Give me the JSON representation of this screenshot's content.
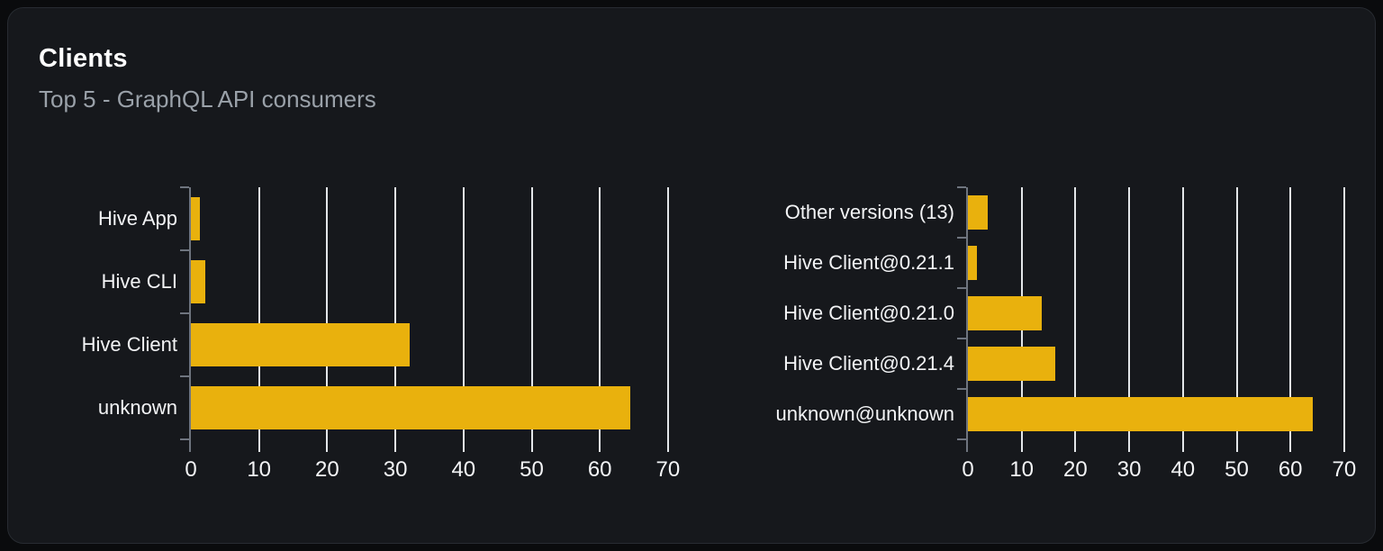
{
  "card": {
    "title": "Clients",
    "subtitle": "Top 5 - GraphQL API consumers"
  },
  "colors": {
    "page_background": "#0a0b0d",
    "card_background": "#16181c",
    "card_border": "#272b31",
    "bar": "#e9b10d",
    "gridline": "#e3e6e9",
    "axis": "#6e747e",
    "title_text": "#ffffff",
    "subtitle_text": "#9aa1a9",
    "label_text": "#f3f4f6"
  },
  "chart_data": [
    {
      "type": "bar",
      "orientation": "horizontal",
      "title": "",
      "xlabel": "",
      "ylabel": "",
      "categories": [
        "Hive App",
        "Hive CLI",
        "Hive Client",
        "unknown"
      ],
      "values": [
        1.3,
        2.1,
        32.1,
        64.5
      ],
      "xticks": [
        0,
        10,
        20,
        30,
        40,
        50,
        60,
        70
      ],
      "xlim": [
        0,
        70.8
      ],
      "grid": true,
      "legend": false,
      "bar_color": "#e9b10d"
    },
    {
      "type": "bar",
      "orientation": "horizontal",
      "title": "",
      "xlabel": "",
      "ylabel": "",
      "categories": [
        "Other versions (13)",
        "Hive Client@0.21.1",
        "Hive Client@0.21.0",
        "Hive Client@0.21.4",
        "unknown@unknown"
      ],
      "values": [
        3.7,
        1.7,
        13.7,
        16.3,
        64.2
      ],
      "xticks": [
        0,
        10,
        20,
        30,
        40,
        50,
        60,
        70
      ],
      "xlim": [
        0,
        71.0
      ],
      "grid": true,
      "legend": false,
      "bar_color": "#e9b10d"
    }
  ]
}
